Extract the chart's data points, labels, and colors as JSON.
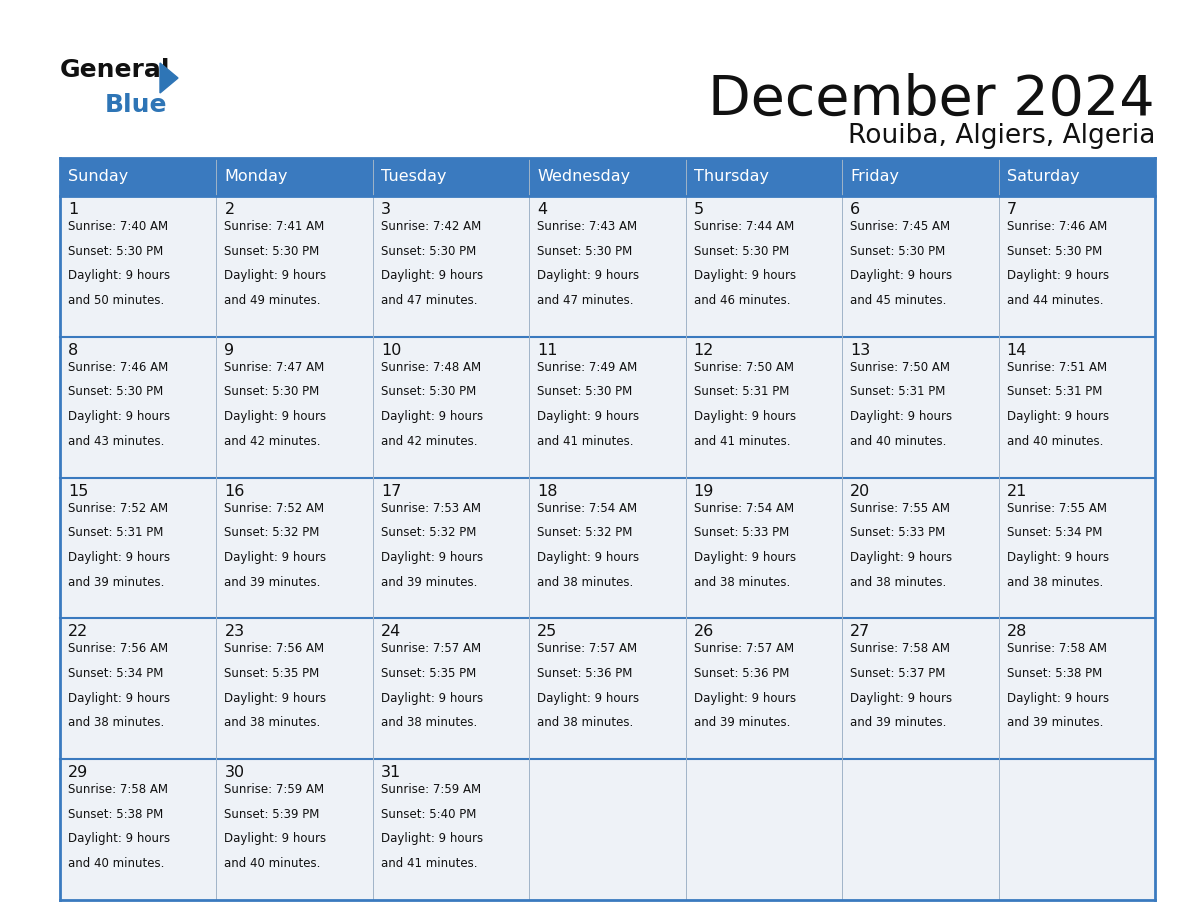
{
  "title": "December 2024",
  "subtitle": "Rouiba, Algiers, Algeria",
  "header_color": "#3a7abf",
  "header_text_color": "#ffffff",
  "cell_bg_even": "#eef2f7",
  "cell_bg_odd": "#eef2f7",
  "border_color": "#3a7abf",
  "thin_line_color": "#a0b4c8",
  "days_of_week": [
    "Sunday",
    "Monday",
    "Tuesday",
    "Wednesday",
    "Thursday",
    "Friday",
    "Saturday"
  ],
  "calendar": [
    [
      {
        "day": "1",
        "sunrise": "7:40 AM",
        "sunset": "5:30 PM",
        "dl1": "Daylight: 9 hours",
        "dl2": "and 50 minutes."
      },
      {
        "day": "2",
        "sunrise": "7:41 AM",
        "sunset": "5:30 PM",
        "dl1": "Daylight: 9 hours",
        "dl2": "and 49 minutes."
      },
      {
        "day": "3",
        "sunrise": "7:42 AM",
        "sunset": "5:30 PM",
        "dl1": "Daylight: 9 hours",
        "dl2": "and 47 minutes."
      },
      {
        "day": "4",
        "sunrise": "7:43 AM",
        "sunset": "5:30 PM",
        "dl1": "Daylight: 9 hours",
        "dl2": "and 47 minutes."
      },
      {
        "day": "5",
        "sunrise": "7:44 AM",
        "sunset": "5:30 PM",
        "dl1": "Daylight: 9 hours",
        "dl2": "and 46 minutes."
      },
      {
        "day": "6",
        "sunrise": "7:45 AM",
        "sunset": "5:30 PM",
        "dl1": "Daylight: 9 hours",
        "dl2": "and 45 minutes."
      },
      {
        "day": "7",
        "sunrise": "7:46 AM",
        "sunset": "5:30 PM",
        "dl1": "Daylight: 9 hours",
        "dl2": "and 44 minutes."
      }
    ],
    [
      {
        "day": "8",
        "sunrise": "7:46 AM",
        "sunset": "5:30 PM",
        "dl1": "Daylight: 9 hours",
        "dl2": "and 43 minutes."
      },
      {
        "day": "9",
        "sunrise": "7:47 AM",
        "sunset": "5:30 PM",
        "dl1": "Daylight: 9 hours",
        "dl2": "and 42 minutes."
      },
      {
        "day": "10",
        "sunrise": "7:48 AM",
        "sunset": "5:30 PM",
        "dl1": "Daylight: 9 hours",
        "dl2": "and 42 minutes."
      },
      {
        "day": "11",
        "sunrise": "7:49 AM",
        "sunset": "5:30 PM",
        "dl1": "Daylight: 9 hours",
        "dl2": "and 41 minutes."
      },
      {
        "day": "12",
        "sunrise": "7:50 AM",
        "sunset": "5:31 PM",
        "dl1": "Daylight: 9 hours",
        "dl2": "and 41 minutes."
      },
      {
        "day": "13",
        "sunrise": "7:50 AM",
        "sunset": "5:31 PM",
        "dl1": "Daylight: 9 hours",
        "dl2": "and 40 minutes."
      },
      {
        "day": "14",
        "sunrise": "7:51 AM",
        "sunset": "5:31 PM",
        "dl1": "Daylight: 9 hours",
        "dl2": "and 40 minutes."
      }
    ],
    [
      {
        "day": "15",
        "sunrise": "7:52 AM",
        "sunset": "5:31 PM",
        "dl1": "Daylight: 9 hours",
        "dl2": "and 39 minutes."
      },
      {
        "day": "16",
        "sunrise": "7:52 AM",
        "sunset": "5:32 PM",
        "dl1": "Daylight: 9 hours",
        "dl2": "and 39 minutes."
      },
      {
        "day": "17",
        "sunrise": "7:53 AM",
        "sunset": "5:32 PM",
        "dl1": "Daylight: 9 hours",
        "dl2": "and 39 minutes."
      },
      {
        "day": "18",
        "sunrise": "7:54 AM",
        "sunset": "5:32 PM",
        "dl1": "Daylight: 9 hours",
        "dl2": "and 38 minutes."
      },
      {
        "day": "19",
        "sunrise": "7:54 AM",
        "sunset": "5:33 PM",
        "dl1": "Daylight: 9 hours",
        "dl2": "and 38 minutes."
      },
      {
        "day": "20",
        "sunrise": "7:55 AM",
        "sunset": "5:33 PM",
        "dl1": "Daylight: 9 hours",
        "dl2": "and 38 minutes."
      },
      {
        "day": "21",
        "sunrise": "7:55 AM",
        "sunset": "5:34 PM",
        "dl1": "Daylight: 9 hours",
        "dl2": "and 38 minutes."
      }
    ],
    [
      {
        "day": "22",
        "sunrise": "7:56 AM",
        "sunset": "5:34 PM",
        "dl1": "Daylight: 9 hours",
        "dl2": "and 38 minutes."
      },
      {
        "day": "23",
        "sunrise": "7:56 AM",
        "sunset": "5:35 PM",
        "dl1": "Daylight: 9 hours",
        "dl2": "and 38 minutes."
      },
      {
        "day": "24",
        "sunrise": "7:57 AM",
        "sunset": "5:35 PM",
        "dl1": "Daylight: 9 hours",
        "dl2": "and 38 minutes."
      },
      {
        "day": "25",
        "sunrise": "7:57 AM",
        "sunset": "5:36 PM",
        "dl1": "Daylight: 9 hours",
        "dl2": "and 38 minutes."
      },
      {
        "day": "26",
        "sunrise": "7:57 AM",
        "sunset": "5:36 PM",
        "dl1": "Daylight: 9 hours",
        "dl2": "and 39 minutes."
      },
      {
        "day": "27",
        "sunrise": "7:58 AM",
        "sunset": "5:37 PM",
        "dl1": "Daylight: 9 hours",
        "dl2": "and 39 minutes."
      },
      {
        "day": "28",
        "sunrise": "7:58 AM",
        "sunset": "5:38 PM",
        "dl1": "Daylight: 9 hours",
        "dl2": "and 39 minutes."
      }
    ],
    [
      {
        "day": "29",
        "sunrise": "7:58 AM",
        "sunset": "5:38 PM",
        "dl1": "Daylight: 9 hours",
        "dl2": "and 40 minutes."
      },
      {
        "day": "30",
        "sunrise": "7:59 AM",
        "sunset": "5:39 PM",
        "dl1": "Daylight: 9 hours",
        "dl2": "and 40 minutes."
      },
      {
        "day": "31",
        "sunrise": "7:59 AM",
        "sunset": "5:40 PM",
        "dl1": "Daylight: 9 hours",
        "dl2": "and 41 minutes."
      },
      null,
      null,
      null,
      null
    ]
  ]
}
